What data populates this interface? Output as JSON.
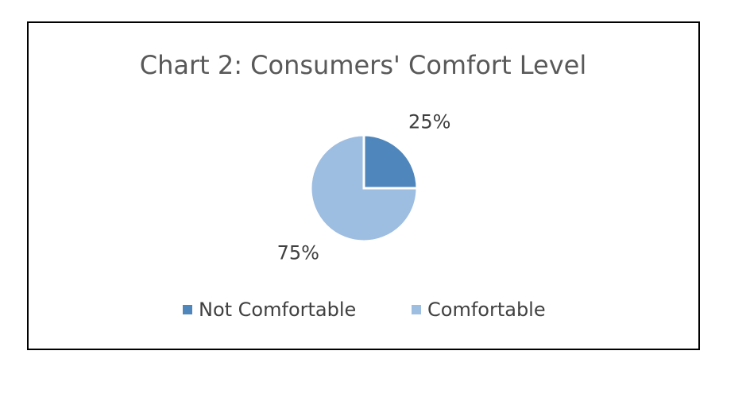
{
  "chart_data": {
    "type": "pie",
    "title": "Chart 2: Consumers' Comfort Level",
    "categories": [
      "Not Comfortable",
      "Comfortable"
    ],
    "values": [
      25,
      75
    ],
    "value_labels": [
      "25%",
      "75%"
    ],
    "colors": [
      "#4f87bd",
      "#9dbde1"
    ],
    "legend": "bottom"
  }
}
